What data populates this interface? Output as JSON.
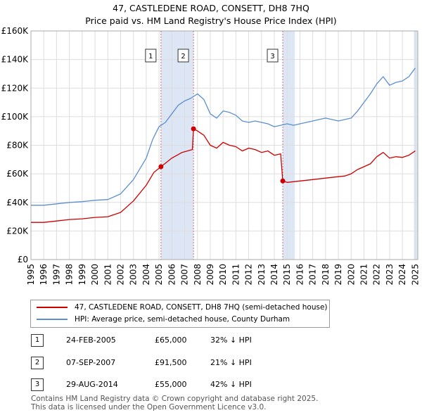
{
  "header": {
    "title": "47, CASTLEDENE ROAD, CONSETT, DH8 7HQ",
    "subtitle": "Price paid vs. HM Land Registry's House Price Index (HPI)"
  },
  "colors": {
    "red": "#cc0000",
    "blue": "#5b8fd0",
    "shade": "#dde6f5",
    "grid": "#dddddd",
    "marker_line": "#d07070"
  },
  "chart_data": {
    "type": "line",
    "title": "47, CASTLEDENE ROAD, CONSETT, DH8 7HQ",
    "subtitle": "Price paid vs. HM Land Registry's House Price Index (HPI)",
    "xlim": [
      1995,
      2025.2
    ],
    "ylim": [
      0,
      160000
    ],
    "y_ticks": [
      0,
      20000,
      40000,
      60000,
      80000,
      100000,
      120000,
      140000,
      160000
    ],
    "y_tick_labels": [
      "£0",
      "£20K",
      "£40K",
      "£60K",
      "£80K",
      "£100K",
      "£120K",
      "£140K",
      "£160K"
    ],
    "x_ticks": [
      1995,
      1996,
      1997,
      1998,
      1999,
      2000,
      2001,
      2002,
      2003,
      2004,
      2005,
      2006,
      2007,
      2008,
      2009,
      2010,
      2011,
      2012,
      2013,
      2014,
      2015,
      2016,
      2017,
      2018,
      2019,
      2020,
      2021,
      2022,
      2023,
      2024,
      2025
    ],
    "grid": true,
    "series": [
      {
        "name": "47, CASTLEDENE ROAD, CONSETT, DH8 7HQ (semi-detached house)",
        "color": "#cc0000",
        "points": [
          [
            1995,
            26000
          ],
          [
            1996,
            26000
          ],
          [
            1997,
            27000
          ],
          [
            1998,
            28000
          ],
          [
            1999,
            28500
          ],
          [
            2000,
            29500
          ],
          [
            2001,
            30000
          ],
          [
            2002,
            33000
          ],
          [
            2003,
            41000
          ],
          [
            2004,
            52000
          ],
          [
            2004.6,
            61000
          ],
          [
            2005.15,
            65000
          ],
          [
            2006,
            71000
          ],
          [
            2006.8,
            75000
          ],
          [
            2007.6,
            77000
          ],
          [
            2007.69,
            91500
          ],
          [
            2008,
            90000
          ],
          [
            2008.5,
            87000
          ],
          [
            2009,
            80000
          ],
          [
            2009.5,
            78000
          ],
          [
            2010,
            82000
          ],
          [
            2010.5,
            80000
          ],
          [
            2011,
            79000
          ],
          [
            2011.5,
            76000
          ],
          [
            2012,
            78000
          ],
          [
            2012.5,
            77000
          ],
          [
            2013,
            75000
          ],
          [
            2013.5,
            76000
          ],
          [
            2014,
            73000
          ],
          [
            2014.5,
            74000
          ],
          [
            2014.66,
            55000
          ],
          [
            2015,
            54000
          ],
          [
            2016,
            55000
          ],
          [
            2017,
            56000
          ],
          [
            2018,
            57000
          ],
          [
            2019,
            58000
          ],
          [
            2019.5,
            58500
          ],
          [
            2020,
            60000
          ],
          [
            2020.5,
            63000
          ],
          [
            2021,
            65000
          ],
          [
            2021.5,
            67000
          ],
          [
            2022,
            72000
          ],
          [
            2022.5,
            75000
          ],
          [
            2023,
            71000
          ],
          [
            2023.5,
            72000
          ],
          [
            2024,
            71500
          ],
          [
            2024.5,
            73000
          ],
          [
            2025,
            76000
          ]
        ]
      },
      {
        "name": "HPI: Average price, semi-detached house, County Durham",
        "color": "#5b8fd0",
        "points": [
          [
            1995,
            38000
          ],
          [
            1996,
            38000
          ],
          [
            1997,
            39000
          ],
          [
            1998,
            40000
          ],
          [
            1999,
            40500
          ],
          [
            2000,
            41500
          ],
          [
            2001,
            42000
          ],
          [
            2002,
            46000
          ],
          [
            2003,
            56000
          ],
          [
            2004,
            71000
          ],
          [
            2004.5,
            84000
          ],
          [
            2005,
            93000
          ],
          [
            2005.5,
            96000
          ],
          [
            2006,
            102000
          ],
          [
            2006.5,
            108000
          ],
          [
            2007,
            111000
          ],
          [
            2007.5,
            113000
          ],
          [
            2008,
            116000
          ],
          [
            2008.5,
            112000
          ],
          [
            2009,
            102000
          ],
          [
            2009.5,
            99000
          ],
          [
            2010,
            104000
          ],
          [
            2010.5,
            103000
          ],
          [
            2011,
            101000
          ],
          [
            2011.5,
            97000
          ],
          [
            2012,
            96000
          ],
          [
            2012.5,
            97000
          ],
          [
            2013,
            96000
          ],
          [
            2013.5,
            95000
          ],
          [
            2014,
            93000
          ],
          [
            2014.5,
            94000
          ],
          [
            2015,
            95000
          ],
          [
            2015.5,
            94000
          ],
          [
            2016,
            95000
          ],
          [
            2016.5,
            96000
          ],
          [
            2017,
            97000
          ],
          [
            2017.5,
            98000
          ],
          [
            2018,
            99000
          ],
          [
            2018.5,
            98000
          ],
          [
            2019,
            97000
          ],
          [
            2019.5,
            98000
          ],
          [
            2020,
            99000
          ],
          [
            2020.5,
            104000
          ],
          [
            2021,
            110000
          ],
          [
            2021.5,
            116000
          ],
          [
            2022,
            123000
          ],
          [
            2022.5,
            128000
          ],
          [
            2023,
            122000
          ],
          [
            2023.5,
            124000
          ],
          [
            2024,
            125000
          ],
          [
            2024.5,
            128000
          ],
          [
            2025,
            134000
          ]
        ]
      }
    ],
    "transactions": [
      {
        "label": "1",
        "x": 2005.15,
        "y": 65000
      },
      {
        "label": "2",
        "x": 2007.69,
        "y": 91500
      },
      {
        "label": "3",
        "x": 2014.66,
        "y": 55000
      }
    ],
    "shaded_ranges": [
      [
        2005.15,
        2007.69
      ],
      [
        2014.66,
        2015.6
      ],
      [
        2024.9,
        2025.2
      ]
    ]
  },
  "legend": {
    "property": "47, CASTLEDENE ROAD, CONSETT, DH8 7HQ (semi-detached house)",
    "hpi": "HPI: Average price, semi-detached house, County Durham"
  },
  "transactions": [
    {
      "num": "1",
      "date": "24-FEB-2005",
      "price": "£65,000",
      "hpi": "32% ↓ HPI"
    },
    {
      "num": "2",
      "date": "07-SEP-2007",
      "price": "£91,500",
      "hpi": "21% ↓ HPI"
    },
    {
      "num": "3",
      "date": "29-AUG-2014",
      "price": "£55,000",
      "hpi": "42% ↓ HPI"
    }
  ],
  "footer": {
    "line1": "Contains HM Land Registry data © Crown copyright and database right 2025.",
    "line2": "This data is licensed under the Open Government Licence v3.0."
  }
}
